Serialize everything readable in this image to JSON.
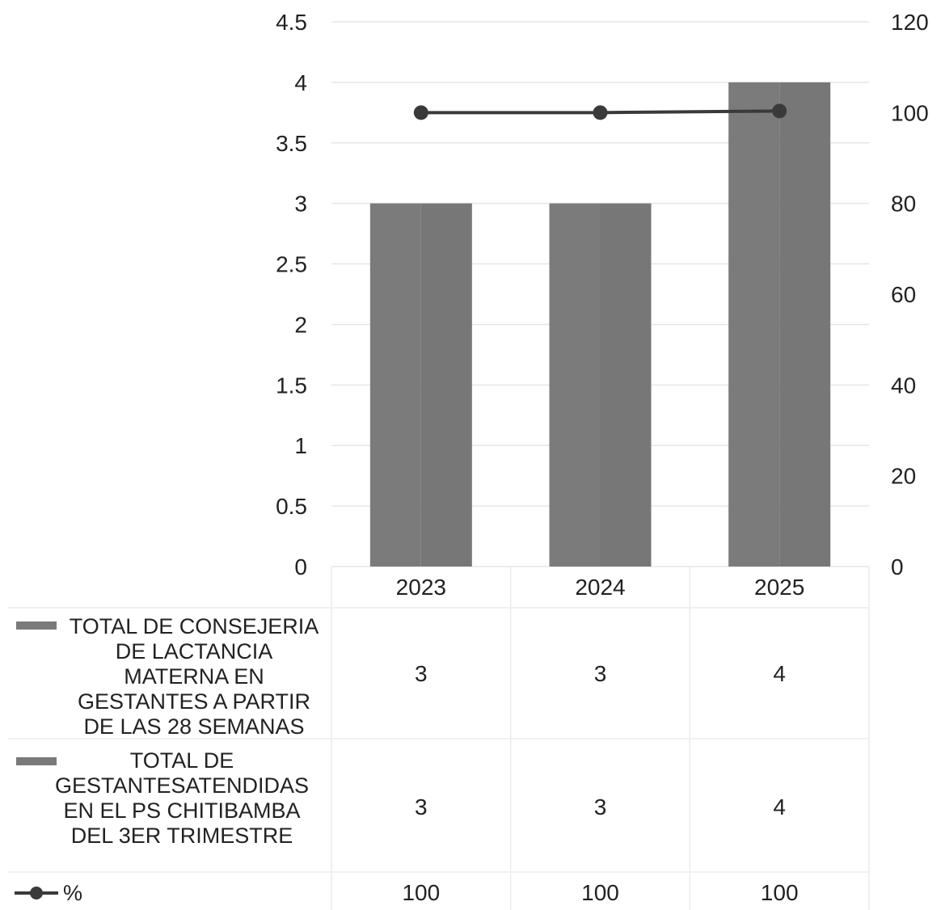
{
  "chart_data": {
    "type": "bar",
    "categories": [
      "2023",
      "2024",
      "2025"
    ],
    "series": [
      {
        "name": "TOTAL DE CONSEJERIA DE LACTANCIA MATERNA EN GESTANTES A PARTIR DE LAS 28 SEMANAS",
        "kind": "bar",
        "axis": "left",
        "values": [
          3,
          3,
          4
        ],
        "color": "#7a7a7a"
      },
      {
        "name": "TOTAL DE GESTANTESATENDIDAS EN EL PS CHITIBAMBA DEL 3ER TRIMESTRE",
        "kind": "bar",
        "axis": "left",
        "values": [
          3,
          3,
          4
        ],
        "color": "#7a7a7a"
      },
      {
        "name": "%",
        "kind": "line",
        "axis": "right",
        "values": [
          100,
          100,
          100
        ],
        "color": "#3a3a3a"
      }
    ],
    "y_left": {
      "ylim": [
        0,
        4.5
      ],
      "ticks": [
        "0",
        "0.5",
        "1",
        "1.5",
        "2",
        "2.5",
        "3",
        "3.5",
        "4",
        "4.5"
      ]
    },
    "y_right": {
      "ylim": [
        0,
        120
      ],
      "ticks": [
        "0",
        "20",
        "40",
        "60",
        "80",
        "100",
        "120"
      ]
    },
    "grid": true,
    "legend": "data-table-below",
    "data_table": {
      "rows": [
        {
          "series_index": 0,
          "cells": [
            "3",
            "3",
            "4"
          ]
        },
        {
          "series_index": 1,
          "cells": [
            "3",
            "3",
            "4"
          ]
        },
        {
          "series_index": 2,
          "cells": [
            "100",
            "100",
            "100"
          ]
        }
      ]
    }
  }
}
